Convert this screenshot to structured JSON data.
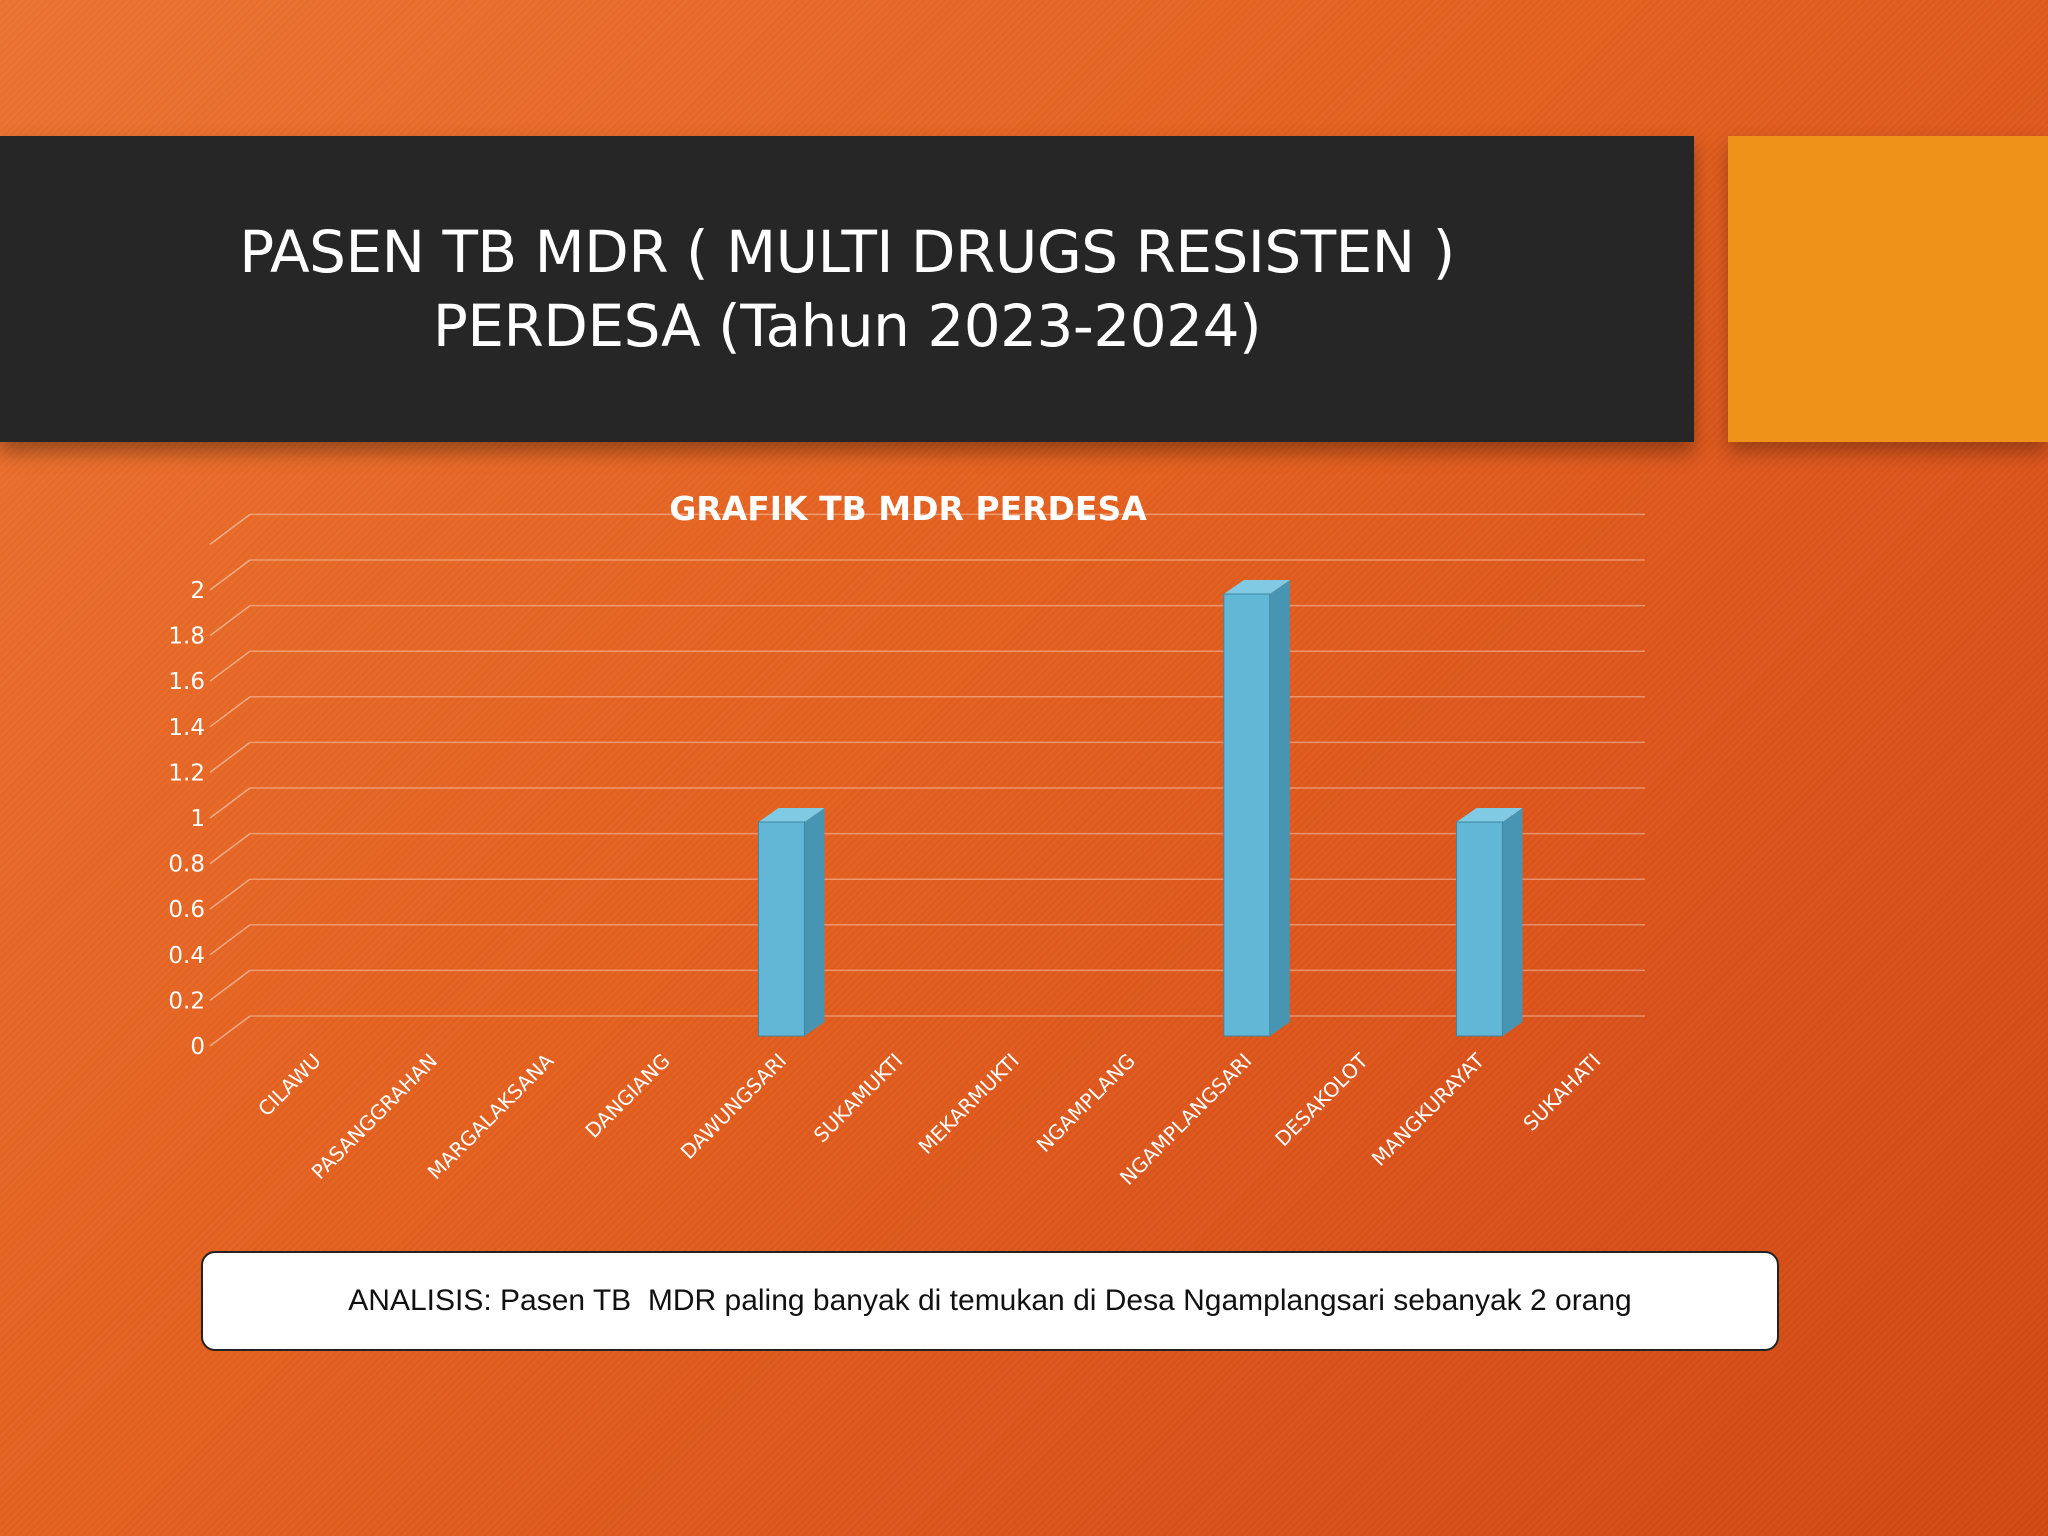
{
  "slide": {
    "title_line1": "PASEN TB MDR ( MULTI DRUGS RESISTEN )",
    "title_line2": "PERDESA (Tahun 2023-2024)",
    "analysis": "ANALISIS: Pasen TB  MDR paling banyak di temukan di Desa Ngamplangsari sebanyak 2 orang"
  },
  "colors": {
    "title_bar": "#262626",
    "accent": "#ef9219",
    "bar_front": "#62b6d6",
    "bar_side": "#4795b2",
    "bar_top": "#80cae4"
  },
  "chart_data": {
    "type": "bar",
    "title": "GRAFIK TB MDR PERDESA",
    "categories": [
      "CILAWU",
      "PASANGGRAHAN",
      "MARGALAKSANA",
      "DANGIANG",
      "DAWUNGSARI",
      "SUKAMUKTI",
      "MEKARMUKTI",
      "NGAMPLANG",
      "NGAMPLANGSARI",
      "DESAKOLOT",
      "MANGKURAYAT",
      "SUKAHATI"
    ],
    "values": [
      0,
      0,
      0,
      0,
      1,
      0,
      0,
      0,
      2,
      0,
      1,
      0
    ],
    "ylim": [
      0,
      2
    ],
    "yticks": [
      "0",
      "0.2",
      "0.4",
      "0.6",
      "0.8",
      "1",
      "1.2",
      "1.4",
      "1.6",
      "1.8",
      "2"
    ],
    "grid": true,
    "legend": "none",
    "style": "3d-column"
  }
}
